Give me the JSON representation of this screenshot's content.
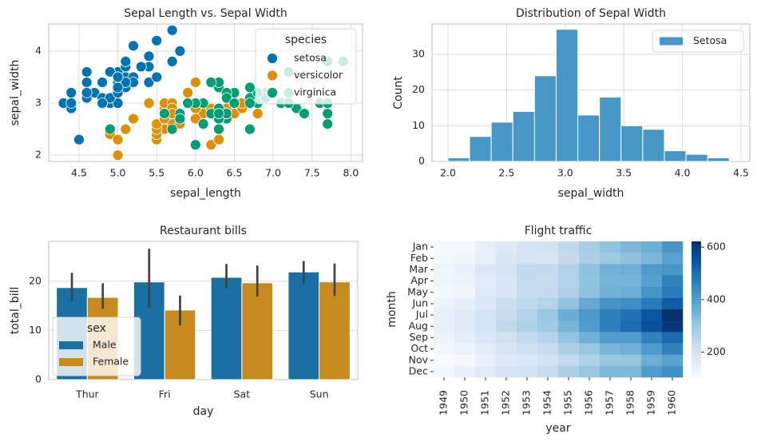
{
  "chart_data": [
    {
      "type": "scatter",
      "title": "Sepal Length vs. Sepal Width",
      "x_label": "sepal_length",
      "y_label": "sepal_width",
      "legend_title": "species",
      "legend": "upper right",
      "grid": true,
      "xlim": [
        4.11,
        8.15
      ],
      "xticks": [
        4.5,
        {
          "value": 5,
          "label": "5.0"
        },
        5.5,
        {
          "value": 6,
          "label": "6.0"
        },
        6.5,
        {
          "value": 7,
          "label": "7.0"
        },
        7.5,
        {
          "value": 8,
          "label": "8.0"
        }
      ],
      "ylim": [
        1.88,
        4.52
      ],
      "yticks": [
        2,
        3,
        4
      ],
      "series": [
        {
          "name": "setosa",
          "color": "#0173b2",
          "x": [
            5.1,
            4.9,
            4.7,
            4.6,
            5.0,
            5.4,
            4.6,
            5.0,
            4.4,
            4.9,
            5.4,
            4.8,
            4.8,
            4.3,
            5.8,
            5.7,
            5.4,
            5.1,
            5.7,
            5.1,
            5.4,
            5.1,
            4.6,
            5.1,
            4.8,
            5.0,
            5.0,
            5.2,
            5.2,
            4.7,
            4.8,
            5.4,
            5.2,
            5.5,
            4.9,
            5.0,
            5.5,
            4.9,
            4.4,
            5.1,
            5.0,
            4.5,
            4.4,
            5.0,
            5.1,
            4.8,
            5.1,
            4.6,
            5.3,
            5.0
          ],
          "values": [
            3.5,
            3.0,
            3.2,
            3.1,
            3.6,
            3.9,
            3.4,
            3.4,
            2.9,
            3.1,
            3.7,
            3.4,
            3.0,
            3.0,
            4.0,
            4.4,
            3.9,
            3.5,
            3.8,
            3.8,
            3.4,
            3.7,
            3.6,
            3.3,
            3.4,
            3.0,
            3.4,
            3.5,
            3.4,
            3.2,
            3.1,
            3.4,
            4.1,
            4.2,
            3.1,
            3.2,
            3.5,
            3.6,
            3.0,
            3.4,
            3.5,
            2.3,
            3.2,
            3.5,
            3.8,
            3.0,
            3.8,
            3.2,
            3.7,
            3.3
          ]
        },
        {
          "name": "versicolor",
          "color": "#de8f05",
          "x": [
            7.0,
            6.4,
            6.9,
            5.5,
            6.5,
            5.7,
            6.3,
            4.9,
            6.6,
            5.2,
            5.0,
            5.9,
            6.0,
            6.1,
            5.6,
            6.7,
            5.6,
            5.8,
            6.2,
            5.6,
            5.9,
            6.1,
            6.3,
            6.1,
            6.4,
            6.6,
            6.8,
            6.7,
            6.0,
            5.7,
            5.5,
            5.5,
            5.8,
            6.0,
            5.4,
            6.0,
            6.7,
            6.3,
            5.6,
            5.5,
            5.5,
            6.1,
            5.8,
            5.0,
            5.6,
            5.7,
            5.7,
            6.2,
            5.1,
            5.7
          ],
          "values": [
            3.2,
            3.2,
            3.1,
            2.3,
            2.8,
            2.8,
            3.3,
            2.4,
            2.9,
            2.7,
            2.0,
            3.0,
            2.2,
            2.9,
            2.9,
            3.1,
            3.0,
            2.7,
            2.2,
            2.5,
            3.2,
            2.8,
            2.5,
            2.8,
            2.9,
            3.0,
            2.8,
            3.0,
            2.9,
            2.6,
            2.4,
            2.4,
            2.7,
            2.7,
            3.0,
            3.4,
            3.1,
            2.3,
            3.0,
            2.5,
            2.6,
            3.0,
            2.6,
            2.3,
            2.7,
            3.0,
            2.9,
            2.9,
            2.5,
            2.8
          ]
        },
        {
          "name": "virginica",
          "color": "#029e73",
          "x": [
            6.3,
            5.8,
            7.1,
            6.3,
            6.5,
            7.6,
            4.9,
            7.3,
            6.7,
            7.2,
            6.5,
            6.4,
            6.8,
            5.7,
            5.8,
            6.4,
            6.5,
            7.7,
            7.7,
            6.0,
            6.9,
            5.6,
            7.7,
            6.3,
            6.7,
            7.2,
            6.2,
            6.1,
            6.4,
            7.2,
            7.4,
            7.9,
            6.4,
            6.3,
            6.1,
            7.7,
            6.3,
            6.4,
            6.0,
            6.9,
            6.7,
            6.9,
            5.8,
            6.8,
            6.7,
            6.7,
            6.3,
            6.5,
            6.2,
            5.9
          ],
          "values": [
            3.3,
            2.7,
            3.0,
            2.9,
            3.0,
            3.0,
            2.5,
            2.9,
            2.5,
            3.6,
            3.2,
            2.7,
            3.0,
            2.5,
            2.8,
            3.2,
            3.0,
            3.8,
            2.6,
            2.2,
            3.2,
            2.8,
            2.8,
            2.7,
            3.3,
            3.2,
            2.8,
            3.0,
            2.8,
            3.0,
            2.8,
            3.8,
            2.8,
            2.8,
            2.6,
            3.0,
            3.4,
            3.1,
            3.0,
            3.1,
            3.1,
            3.1,
            2.7,
            3.2,
            3.3,
            3.0,
            2.5,
            3.0,
            3.4,
            3.0
          ]
        }
      ]
    },
    {
      "type": "histogram",
      "title": "Distribution of Sepal Width",
      "x_label": "sepal_width",
      "y_label": "Count",
      "legend": "upper right",
      "grid": true,
      "xlim": [
        1.864,
        4.575
      ],
      "xticks": [
        {
          "value": 2,
          "label": "2.0"
        },
        2.5,
        {
          "value": 3,
          "label": "3.0"
        },
        3.5,
        {
          "value": 4,
          "label": "4.0"
        },
        4.5
      ],
      "ylim": [
        0,
        38.5
      ],
      "yticks": [
        0,
        10,
        20,
        30
      ],
      "series": [
        {
          "name": "Setosa",
          "color": "#4796c8",
          "bins": [
            2.0,
            2.1846,
            2.3692,
            2.5538,
            2.7385,
            2.9231,
            3.1077,
            3.2923,
            3.4769,
            3.6615,
            3.8462,
            4.0308,
            4.2154,
            4.4
          ],
          "values": [
            1,
            7,
            11,
            14,
            24,
            37,
            13,
            18,
            10,
            9,
            3,
            2,
            1
          ]
        }
      ]
    },
    {
      "type": "bar",
      "title": "Restaurant bills",
      "x_label": "day",
      "y_label": "total_bill",
      "legend_title": "sex",
      "legend": "lower left",
      "grid": true,
      "categories": [
        "Thur",
        "Fri",
        "Sat",
        "Sun"
      ],
      "ylim": [
        0,
        28.1
      ],
      "yticks": [
        0,
        10,
        20
      ],
      "series": [
        {
          "name": "Male",
          "color": "#1a6fa3",
          "values": [
            18.71,
            19.86,
            20.8,
            21.89
          ],
          "ci_low": [
            16.0,
            14.5,
            18.6,
            19.6
          ],
          "ci_high": [
            21.7,
            26.6,
            23.5,
            24.1
          ]
        },
        {
          "name": "Female",
          "color": "#c78a1f",
          "values": [
            16.72,
            14.15,
            19.68,
            19.87
          ],
          "ci_low": [
            14.4,
            11.0,
            16.9,
            17.0
          ],
          "ci_high": [
            19.6,
            17.1,
            23.2,
            23.6
          ]
        }
      ]
    },
    {
      "type": "heatmap",
      "title": "Flight traffic",
      "x_label": "year",
      "y_label": "month",
      "colormap": "Blues",
      "x": [
        "1949",
        "1950",
        "1951",
        "1952",
        "1953",
        "1954",
        "1955",
        "1956",
        "1957",
        "1958",
        "1959",
        "1960"
      ],
      "categories": [
        "Jan",
        "Feb",
        "Mar",
        "Apr",
        "May",
        "Jun",
        "Jul",
        "Aug",
        "Sep",
        "Oct",
        "Nov",
        "Dec"
      ],
      "clim": [
        104,
        622
      ],
      "cticks": [
        200,
        400,
        600
      ],
      "z": [
        [
          112,
          115,
          145,
          171,
          196,
          204,
          242,
          284,
          315,
          340,
          360,
          417
        ],
        [
          118,
          126,
          150,
          180,
          196,
          188,
          233,
          277,
          301,
          318,
          342,
          391
        ],
        [
          132,
          141,
          178,
          193,
          236,
          235,
          267,
          317,
          356,
          362,
          406,
          419
        ],
        [
          129,
          135,
          163,
          181,
          235,
          227,
          269,
          313,
          348,
          348,
          396,
          461
        ],
        [
          121,
          125,
          172,
          183,
          229,
          234,
          270,
          318,
          355,
          363,
          420,
          472
        ],
        [
          135,
          149,
          178,
          218,
          243,
          264,
          315,
          374,
          422,
          435,
          472,
          535
        ],
        [
          148,
          170,
          199,
          230,
          264,
          302,
          364,
          413,
          465,
          491,
          548,
          622
        ],
        [
          148,
          170,
          199,
          242,
          272,
          293,
          347,
          405,
          467,
          505,
          559,
          606
        ],
        [
          136,
          158,
          184,
          209,
          237,
          259,
          312,
          355,
          404,
          404,
          463,
          508
        ],
        [
          119,
          133,
          162,
          191,
          211,
          229,
          274,
          306,
          347,
          359,
          407,
          461
        ],
        [
          104,
          114,
          146,
          172,
          180,
          203,
          237,
          271,
          305,
          310,
          362,
          390
        ],
        [
          118,
          140,
          166,
          194,
          201,
          229,
          278,
          306,
          336,
          337,
          405,
          432
        ]
      ]
    }
  ]
}
